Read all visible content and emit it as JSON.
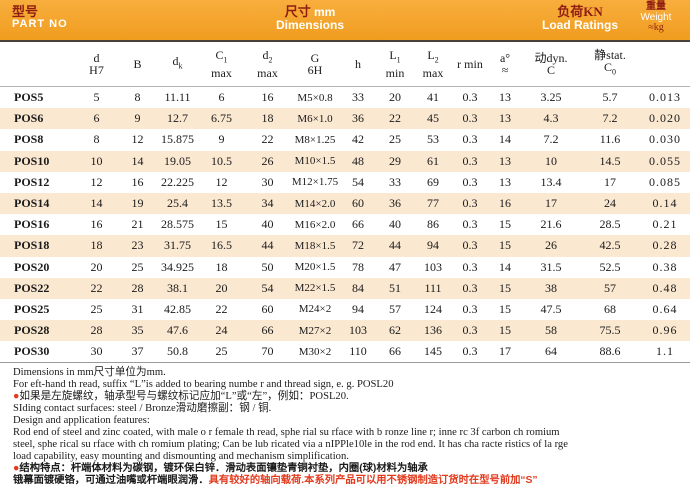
{
  "header": {
    "part_no_zh": "型号",
    "part_no_en": "PART NO",
    "dims_zh": "尺寸 mm",
    "dims_en": "Dimensions",
    "load_zh": "负荷KN",
    "load_en": "Load Ratings",
    "weight_zh": "重量",
    "weight_en": "Weight",
    "weight_unit": "≈kg"
  },
  "colors": {
    "band_orange": "#F2A32C",
    "dark_red_text": "#8F1D12",
    "row_tint": "#FAE8D1",
    "note_red": "#E23B1E"
  },
  "table": {
    "columns": [
      {
        "t": "d",
        "l2": "H7"
      },
      {
        "t": "B"
      },
      {
        "t": "d",
        "s": "k"
      },
      {
        "t": "C",
        "s": "1",
        "l2": "max"
      },
      {
        "t": "d",
        "s": "2",
        "l2": "max"
      },
      {
        "t": "G",
        "l2": "6H"
      },
      {
        "t": "h"
      },
      {
        "t": "L",
        "s": "1",
        "l2": "min"
      },
      {
        "t": "L",
        "s": "2",
        "l2": "max"
      },
      {
        "t": "r min"
      },
      {
        "t": "a°",
        "l2": "≈"
      },
      {
        "t": "动dyn.",
        "l2": "C"
      },
      {
        "t": "静stat.",
        "l2": "C",
        "l2s": "0"
      }
    ],
    "rows": [
      {
        "part": "POS5",
        "values": [
          "5",
          "8",
          "11.11",
          "6",
          "16",
          "M5×0.8",
          "33",
          "20",
          "41",
          "0.3",
          "13",
          "3.25",
          "5.7",
          "0.013"
        ]
      },
      {
        "part": "POS6",
        "values": [
          "6",
          "9",
          "12.7",
          "6.75",
          "18",
          "M6×1.0",
          "36",
          "22",
          "45",
          "0.3",
          "13",
          "4.3",
          "7.2",
          "0.020"
        ]
      },
      {
        "part": "POS8",
        "values": [
          "8",
          "12",
          "15.875",
          "9",
          "22",
          "M8×1.25",
          "42",
          "25",
          "53",
          "0.3",
          "14",
          "7.2",
          "11.6",
          "0.030"
        ]
      },
      {
        "part": "POS10",
        "values": [
          "10",
          "14",
          "19.05",
          "10.5",
          "26",
          "M10×1.5",
          "48",
          "29",
          "61",
          "0.3",
          "13",
          "10",
          "14.5",
          "0.055"
        ]
      },
      {
        "part": "POS12",
        "values": [
          "12",
          "16",
          "22.225",
          "12",
          "30",
          "M12×1.75",
          "54",
          "33",
          "69",
          "0.3",
          "13",
          "13.4",
          "17",
          "0.085"
        ]
      },
      {
        "part": "POS14",
        "values": [
          "14",
          "19",
          "25.4",
          "13.5",
          "34",
          "M14×2.0",
          "60",
          "36",
          "77",
          "0.3",
          "16",
          "17",
          "24",
          "0.14"
        ]
      },
      {
        "part": "POS16",
        "values": [
          "16",
          "21",
          "28.575",
          "15",
          "40",
          "M16×2.0",
          "66",
          "40",
          "86",
          "0.3",
          "15",
          "21.6",
          "28.5",
          "0.21"
        ]
      },
      {
        "part": "POS18",
        "values": [
          "18",
          "23",
          "31.75",
          "16.5",
          "44",
          "M18×1.5",
          "72",
          "44",
          "94",
          "0.3",
          "15",
          "26",
          "42.5",
          "0.28"
        ]
      },
      {
        "part": "POS20",
        "values": [
          "20",
          "25",
          "34.925",
          "18",
          "50",
          "M20×1.5",
          "78",
          "47",
          "103",
          "0.3",
          "14",
          "31.5",
          "52.5",
          "0.38"
        ]
      },
      {
        "part": "POS22",
        "values": [
          "22",
          "28",
          "38.1",
          "20",
          "54",
          "M22×1.5",
          "84",
          "51",
          "111",
          "0.3",
          "15",
          "38",
          "57",
          "0.48"
        ]
      },
      {
        "part": "POS25",
        "values": [
          "25",
          "31",
          "42.85",
          "22",
          "60",
          "M24×2",
          "94",
          "57",
          "124",
          "0.3",
          "15",
          "47.5",
          "68",
          "0.64"
        ]
      },
      {
        "part": "POS28",
        "values": [
          "28",
          "35",
          "47.6",
          "24",
          "66",
          "M27×2",
          "103",
          "62",
          "136",
          "0.3",
          "15",
          "58",
          "75.5",
          "0.96"
        ]
      },
      {
        "part": "POS30",
        "values": [
          "30",
          "37",
          "50.8",
          "25",
          "70",
          "M30×2",
          "110",
          "66",
          "145",
          "0.3",
          "17",
          "64",
          "88.6",
          "1.1"
        ]
      }
    ]
  },
  "notes": [
    [
      {
        "t": "Dimensions in mm尺寸单位为mm."
      }
    ],
    [
      {
        "t": "For eft-hand th read, suffix “L”is added to bearing numbe r and thread sign, e. g. POSL20"
      }
    ],
    [
      {
        "t": "●",
        "red": true
      },
      {
        "t": "如果是左旋螺纹，轴承型号与螺纹标记应加“L”或“左”，例如：POSL20."
      }
    ],
    [
      {
        "t": "SIding contact surfaces: steel / Bronze滑动磨擦副：钢 / 铜."
      }
    ],
    [
      {
        "t": "Design and application features:"
      }
    ],
    [
      {
        "t": "Rod end of steel and zinc coated, with male o r female th read, sphe rial su rface with b ronze line r; inne rc 3f carbon ch romium"
      }
    ],
    [
      {
        "t": "steel, sphe rical su rface with ch romium plating; Can be lub ricated via a nIPPle10le in the rod end. It has cha racte ristics of la rge"
      }
    ],
    [
      {
        "t": "load capability, easy mounting and dismounting and mechanism simplification."
      }
    ],
    [
      {
        "t": "●",
        "red": true
      },
      {
        "t": "结构特点：杆端体材料为碳钢，镀环保白锌．滑动表面镶垫青铜衬垫，内圈(球)材料为轴承",
        "bold": true
      }
    ],
    [
      {
        "t": "锇幕面镀硬铬，可通过油嘴或杆端眼润滑．",
        "bold": true
      },
      {
        "t": "具有较好的轴向载荷.本系列产品可以用不锈钢制造订货时在型号前加“S”",
        "red": true,
        "bold": true
      }
    ]
  ]
}
